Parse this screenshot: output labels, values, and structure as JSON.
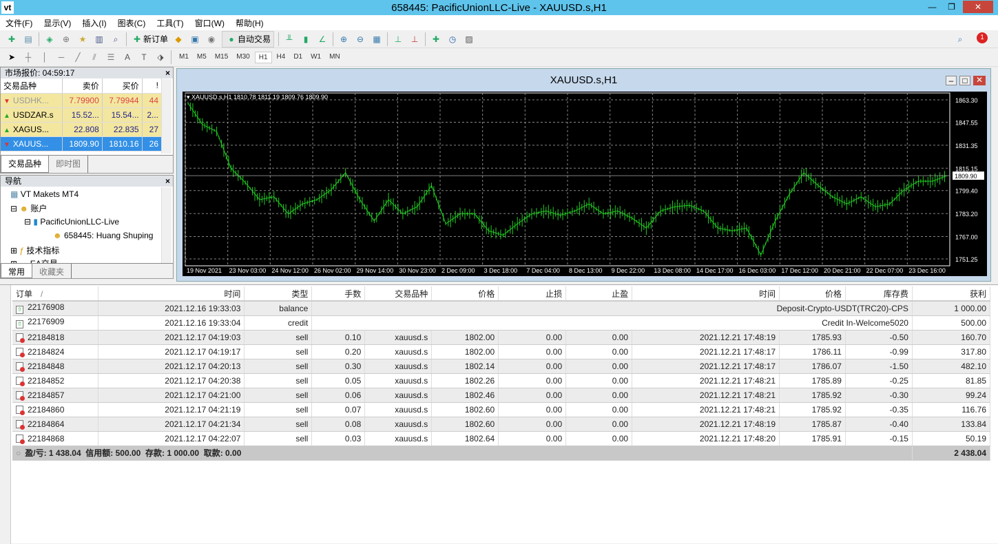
{
  "window": {
    "title": "658445: PacificUnionLLC-Live - XAUUSD.s,H1",
    "logo": "vt"
  },
  "menu": [
    "文件(F)",
    "显示(V)",
    "插入(I)",
    "图表(C)",
    "工具(T)",
    "窗口(W)",
    "帮助(H)"
  ],
  "toolbar": {
    "new_order": "新订单",
    "auto_trade": "自动交易",
    "notification_count": "1"
  },
  "timeframes": [
    "M1",
    "M5",
    "M15",
    "M30",
    "H1",
    "H4",
    "D1",
    "W1",
    "MN"
  ],
  "active_timeframe": "H1",
  "market_watch": {
    "title": "市场报价: 04:59:17",
    "headers": [
      "交易品种",
      "卖价",
      "买价",
      "!"
    ],
    "rows": [
      {
        "symbol": "USDHK...",
        "bid": "7.79900",
        "ask": "7.79944",
        "spread": "44",
        "dir": "down"
      },
      {
        "symbol": "USDZAR.s",
        "bid": "15.52...",
        "ask": "15.54...",
        "spread": "2...",
        "dir": "up"
      },
      {
        "symbol": "XAGUS...",
        "bid": "22.808",
        "ask": "22.835",
        "spread": "27",
        "dir": "up"
      },
      {
        "symbol": "XAUUS...",
        "bid": "1809.90",
        "ask": "1810.16",
        "spread": "26",
        "dir": "down",
        "selected": true
      }
    ],
    "tabs": [
      "交易品种",
      "即时图"
    ]
  },
  "navigator": {
    "title": "导航",
    "items": [
      "VT Makets MT4",
      "账户",
      "PacificUnionLLC-Live",
      "658445: Huang Shuping",
      "技术指标",
      "EA交易"
    ],
    "tabs": [
      "常用",
      "收藏夹"
    ]
  },
  "chart": {
    "window_title": "XAUUSD.s,H1",
    "info": "XAUUSD.s,H1  1810.78 1811.19 1809.76 1809.90",
    "current_price": "1809.90"
  },
  "chart_data": {
    "type": "line",
    "symbol": "XAUUSD.s",
    "timeframe": "H1",
    "x_ticks": [
      "19 Nov 2021",
      "23 Nov 03:00",
      "24 Nov 12:00",
      "26 Nov 02:00",
      "29 Nov 14:00",
      "30 Nov 23:00",
      "2 Dec 09:00",
      "3 Dec 18:00",
      "7 Dec 04:00",
      "8 Dec 13:00",
      "9 Dec 22:00",
      "13 Dec 08:00",
      "14 Dec 17:00",
      "16 Dec 03:00",
      "17 Dec 12:00",
      "20 Dec 21:00",
      "22 Dec 07:00",
      "23 Dec 16:00"
    ],
    "y_ticks": [
      "1863.30",
      "1847.55",
      "1831.35",
      "1815.15",
      "1799.40",
      "1783.20",
      "1767.00",
      "1751.25"
    ],
    "ylim": [
      1751.25,
      1863.3
    ],
    "grid": true,
    "color": "#22cc22",
    "closes": [
      1861,
      1846,
      1841,
      1815,
      1805,
      1793,
      1795,
      1783,
      1790,
      1793,
      1800,
      1812,
      1793,
      1778,
      1793,
      1783,
      1788,
      1803,
      1776,
      1783,
      1783,
      1771,
      1768,
      1776,
      1783,
      1785,
      1782,
      1785,
      1790,
      1783,
      1785,
      1780,
      1773,
      1785,
      1788,
      1789,
      1785,
      1773,
      1771,
      1773,
      1754,
      1778,
      1797,
      1812,
      1803,
      1795,
      1790,
      1795,
      1788,
      1790,
      1800,
      1806,
      1806,
      1809.9
    ]
  },
  "terminal": {
    "headers": [
      "订单",
      "时间",
      "类型",
      "手数",
      "交易品种",
      "价格",
      "止损",
      "止盈",
      "时间",
      "价格",
      "库存费",
      "获利"
    ],
    "sort_mark": "/",
    "cash_rows": [
      {
        "order": "22176908",
        "time": "2021.12.16 19:33:03",
        "type": "balance",
        "comment": "Deposit-Crypto-USDT(TRC20)-CPS",
        "profit": "1 000.00"
      },
      {
        "order": "22176909",
        "time": "2021.12.16 19:33:04",
        "type": "credit",
        "comment": "Credit In-Welcome5020",
        "profit": "500.00"
      }
    ],
    "rows": [
      [
        "22184818",
        "2021.12.17 04:19:03",
        "sell",
        "0.10",
        "xauusd.s",
        "1802.00",
        "0.00",
        "0.00",
        "2021.12.21 17:48:19",
        "1785.93",
        "-0.50",
        "160.70"
      ],
      [
        "22184824",
        "2021.12.17 04:19:17",
        "sell",
        "0.20",
        "xauusd.s",
        "1802.00",
        "0.00",
        "0.00",
        "2021.12.21 17:48:17",
        "1786.11",
        "-0.99",
        "317.80"
      ],
      [
        "22184848",
        "2021.12.17 04:20:13",
        "sell",
        "0.30",
        "xauusd.s",
        "1802.14",
        "0.00",
        "0.00",
        "2021.12.21 17:48:17",
        "1786.07",
        "-1.50",
        "482.10"
      ],
      [
        "22184852",
        "2021.12.17 04:20:38",
        "sell",
        "0.05",
        "xauusd.s",
        "1802.26",
        "0.00",
        "0.00",
        "2021.12.21 17:48:21",
        "1785.89",
        "-0.25",
        "81.85"
      ],
      [
        "22184857",
        "2021.12.17 04:21:00",
        "sell",
        "0.06",
        "xauusd.s",
        "1802.46",
        "0.00",
        "0.00",
        "2021.12.21 17:48:21",
        "1785.92",
        "-0.30",
        "99.24"
      ],
      [
        "22184860",
        "2021.12.17 04:21:19",
        "sell",
        "0.07",
        "xauusd.s",
        "1802.60",
        "0.00",
        "0.00",
        "2021.12.21 17:48:21",
        "1785.92",
        "-0.35",
        "116.76"
      ],
      [
        "22184864",
        "2021.12.17 04:21:34",
        "sell",
        "0.08",
        "xauusd.s",
        "1802.60",
        "0.00",
        "0.00",
        "2021.12.21 17:48:19",
        "1785.87",
        "-0.40",
        "133.84"
      ],
      [
        "22184868",
        "2021.12.17 04:22:07",
        "sell",
        "0.03",
        "xauusd.s",
        "1802.64",
        "0.00",
        "0.00",
        "2021.12.21 17:48:20",
        "1785.91",
        "-0.15",
        "50.19"
      ]
    ],
    "summary": "盈/亏: 1 438.04  信用额: 500.00  存款: 1 000.00  取款: 0.00",
    "total": "2 438.04"
  }
}
